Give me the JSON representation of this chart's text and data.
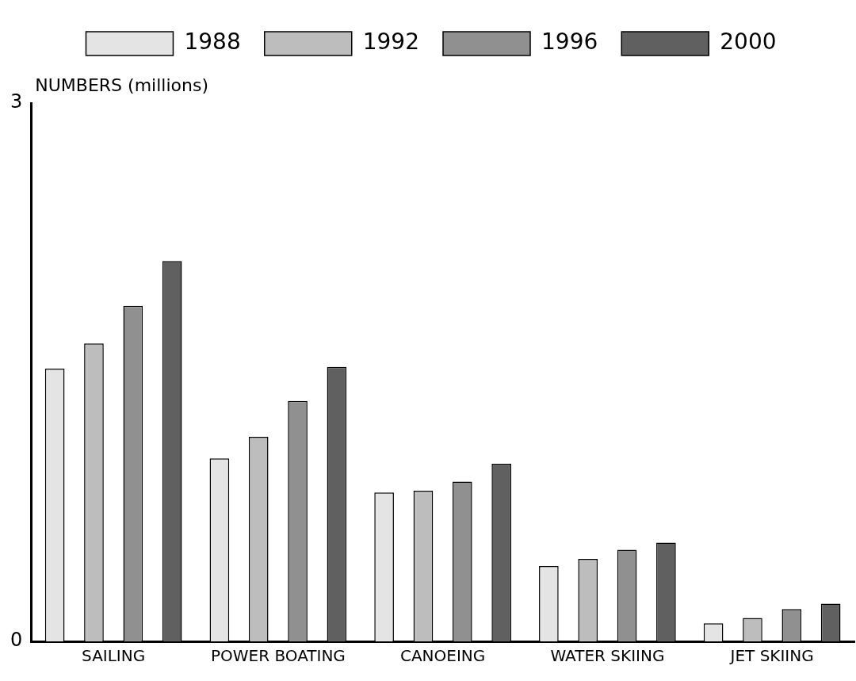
{
  "chart_data": {
    "type": "bar",
    "ylabel": "NUMBERS (millions)",
    "categories": [
      "SAILING",
      "POWER BOATING",
      "CANOEING",
      "WATER SKIING",
      "JET SKIING"
    ],
    "series": [
      {
        "name": "1988",
        "color": "#e4e4e4",
        "values": [
          1.52,
          1.02,
          0.83,
          0.42,
          0.1
        ]
      },
      {
        "name": "1992",
        "color": "#bdbdbd",
        "values": [
          1.66,
          1.14,
          0.84,
          0.46,
          0.13
        ]
      },
      {
        "name": "1996",
        "color": "#909090",
        "values": [
          1.87,
          1.34,
          0.89,
          0.51,
          0.18
        ]
      },
      {
        "name": "2000",
        "color": "#606060",
        "values": [
          2.12,
          1.53,
          0.99,
          0.55,
          0.21
        ]
      }
    ],
    "ylim": [
      0,
      3
    ],
    "yticks": [
      0,
      3
    ],
    "grid": false,
    "legend": "top"
  }
}
